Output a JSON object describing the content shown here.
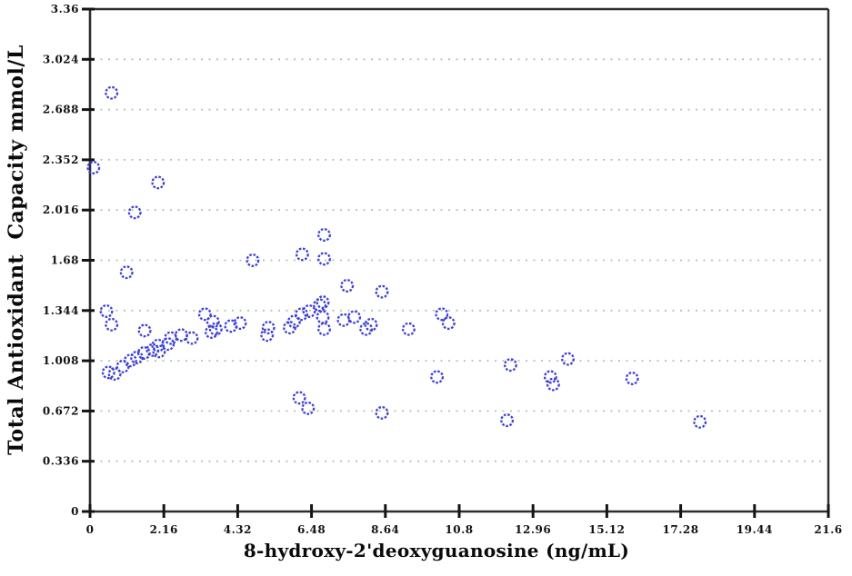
{
  "chart_data": {
    "type": "scatter",
    "title": "",
    "xlabel": "8-hydroxy-2'deoxyguanosine (ng/mL)",
    "ylabel": "Total Antioxidant  Capacity mmol/L",
    "xlim": [
      0,
      21.6
    ],
    "ylim": [
      0,
      3.36
    ],
    "x_tick_labels": [
      "0",
      "2.16",
      "4.32",
      "6.48",
      "8.64",
      "10.8",
      "12.96",
      "15.12",
      "17.28",
      "19.44",
      "21.6"
    ],
    "x_tick_values": [
      0,
      2.16,
      4.32,
      6.48,
      8.64,
      10.8,
      12.96,
      15.12,
      17.28,
      19.44,
      21.6
    ],
    "y_tick_labels": [
      "0",
      "0.336",
      "0.672",
      "1.008",
      "1.344",
      "1.68",
      "2.016",
      "2.352",
      "2.688",
      "3.024",
      "3.36"
    ],
    "y_tick_values": [
      0,
      0.336,
      0.672,
      1.008,
      1.344,
      1.68,
      2.016,
      2.352,
      2.688,
      3.024,
      3.36
    ],
    "grid": "horizontal-dotted",
    "legend": "none",
    "marker": {
      "shape": "open-circle",
      "style": "dashed-stroke",
      "color": "#3e41d5"
    },
    "colors": {
      "axis": "#2e2e2e",
      "grid_dots": "#b6c0b8",
      "tick_text": "#111111",
      "background": "#ffffff"
    },
    "series": [
      {
        "name": "samples",
        "points": [
          [
            0.1,
            2.3
          ],
          [
            0.63,
            2.8
          ],
          [
            1.07,
            1.6
          ],
          [
            1.31,
            2.0
          ],
          [
            1.99,
            2.2
          ],
          [
            0.48,
            1.34
          ],
          [
            0.63,
            1.25
          ],
          [
            0.54,
            0.93
          ],
          [
            0.72,
            0.92
          ],
          [
            0.96,
            0.97
          ],
          [
            1.18,
            1.01
          ],
          [
            1.37,
            1.03
          ],
          [
            1.58,
            1.06
          ],
          [
            1.6,
            1.21
          ],
          [
            1.83,
            1.08
          ],
          [
            1.99,
            1.11
          ],
          [
            2.02,
            1.07
          ],
          [
            2.28,
            1.12
          ],
          [
            2.36,
            1.16
          ],
          [
            2.67,
            1.18
          ],
          [
            2.98,
            1.16
          ],
          [
            3.36,
            1.32
          ],
          [
            3.55,
            1.2
          ],
          [
            3.6,
            1.27
          ],
          [
            3.68,
            1.22
          ],
          [
            4.12,
            1.24
          ],
          [
            4.39,
            1.26
          ],
          [
            4.76,
            1.68
          ],
          [
            6.21,
            1.72
          ],
          [
            6.85,
            1.85
          ],
          [
            6.85,
            1.69
          ],
          [
            5.18,
            1.18
          ],
          [
            5.22,
            1.23
          ],
          [
            5.84,
            1.23
          ],
          [
            5.97,
            1.27
          ],
          [
            6.19,
            1.32
          ],
          [
            6.41,
            1.34
          ],
          [
            6.72,
            1.38
          ],
          [
            6.81,
            1.4
          ],
          [
            6.81,
            1.3
          ],
          [
            6.85,
            1.22
          ],
          [
            7.42,
            1.28
          ],
          [
            7.52,
            1.51
          ],
          [
            7.73,
            1.3
          ],
          [
            8.08,
            1.22
          ],
          [
            8.22,
            1.25
          ],
          [
            8.54,
            1.47
          ],
          [
            9.32,
            1.22
          ],
          [
            10.15,
            0.9
          ],
          [
            10.29,
            1.32
          ],
          [
            10.49,
            1.26
          ],
          [
            6.12,
            0.76
          ],
          [
            6.38,
            0.69
          ],
          [
            8.54,
            0.66
          ],
          [
            12.2,
            0.61
          ],
          [
            12.3,
            0.98
          ],
          [
            13.47,
            0.9
          ],
          [
            13.55,
            0.85
          ],
          [
            13.98,
            1.02
          ],
          [
            15.86,
            0.89
          ],
          [
            17.84,
            0.6
          ]
        ]
      }
    ]
  }
}
